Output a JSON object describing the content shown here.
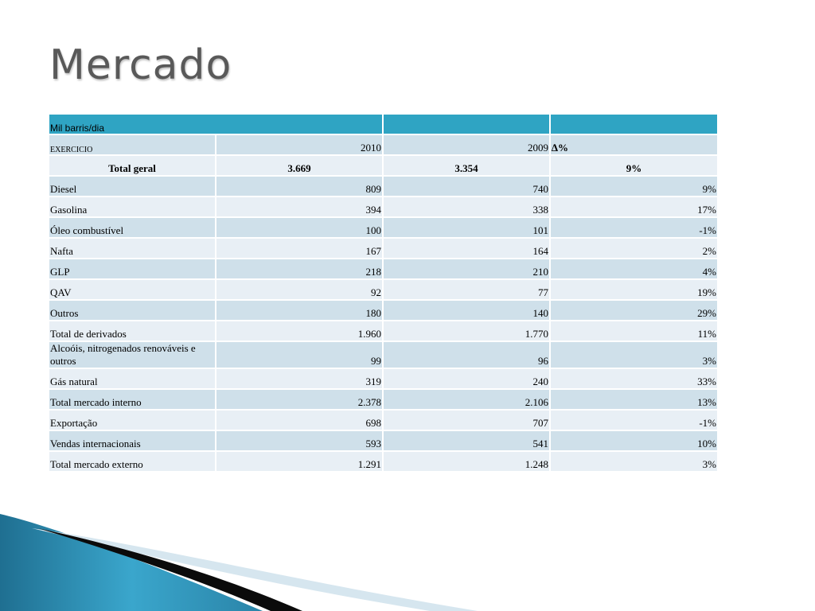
{
  "title": "Mercado",
  "table": {
    "unit_label": "Mil barris/dia",
    "exercicio": {
      "label": "EXERCICIO",
      "y2010": "2010",
      "y2009": "2009",
      "delta": "∆%"
    },
    "total_geral": {
      "label": "Total geral",
      "y2010": "3.669",
      "y2009": "3.354",
      "delta": "9%"
    },
    "rows": [
      {
        "label": "Diesel",
        "y2010": "809",
        "y2009": "740",
        "delta": "9%"
      },
      {
        "label": "Gasolina",
        "y2010": "394",
        "y2009": "338",
        "delta": "17%"
      },
      {
        "label": "Óleo combustível",
        "y2010": "100",
        "y2009": "101",
        "delta": "-1%"
      },
      {
        "label": "Nafta",
        "y2010": "167",
        "y2009": "164",
        "delta": "2%"
      },
      {
        "label": "GLP",
        "y2010": "218",
        "y2009": "210",
        "delta": "4%"
      },
      {
        "label": "QAV",
        "y2010": "92",
        "y2009": "77",
        "delta": "19%"
      },
      {
        "label": "Outros",
        "y2010": "180",
        "y2009": "140",
        "delta": "29%"
      },
      {
        "label": "Total de derivados",
        "y2010": "1.960",
        "y2009": "1.770",
        "delta": "11%"
      },
      {
        "label": "Alcoóis, nitrogenados renováveis e outros",
        "y2010": "99",
        "y2009": "96",
        "delta": "3%"
      },
      {
        "label": "Gás natural",
        "y2010": "319",
        "y2009": "240",
        "delta": "33%"
      },
      {
        "label": "Total mercado interno",
        "y2010": "2.378",
        "y2009": "2.106",
        "delta": "13%"
      },
      {
        "label": "Exportação",
        "y2010": "698",
        "y2009": "707",
        "delta": "-1%"
      },
      {
        "label": "Vendas internacionais",
        "y2010": "593",
        "y2009": "541",
        "delta": "10%"
      },
      {
        "label": "Total mercado externo",
        "y2010": "1.291",
        "y2009": "1.248",
        "delta": "3%"
      }
    ]
  },
  "colors": {
    "header": "#2fa4c3",
    "row_dark": "#cfe0ea",
    "row_light": "#e8eff5",
    "title": "#595959"
  }
}
